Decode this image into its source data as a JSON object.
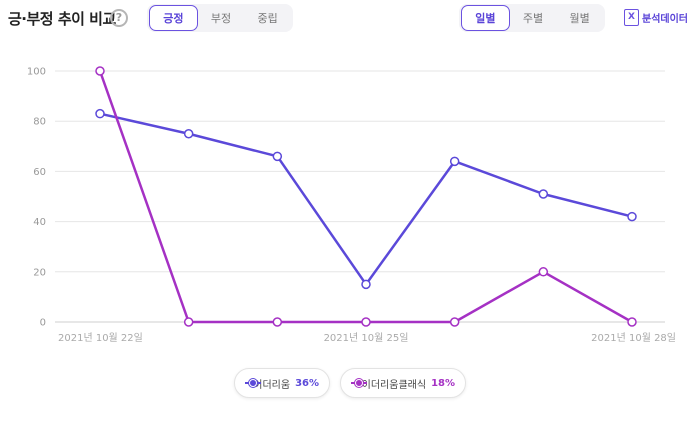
{
  "header": {
    "title": "긍·부정 추이 비교",
    "help_glyph": "?",
    "sentiment_tabs": [
      {
        "label": "긍정",
        "active": true
      },
      {
        "label": "부정",
        "active": false
      },
      {
        "label": "중립",
        "active": false
      }
    ],
    "period_tabs": [
      {
        "label": "일별",
        "active": true
      },
      {
        "label": "주별",
        "active": false
      },
      {
        "label": "월별",
        "active": false
      }
    ],
    "export_label": "분석데이터",
    "export_glyph": "X"
  },
  "colors": {
    "series1": "#5b49d9",
    "series2": "#a531c4",
    "accent": "#6b52e0",
    "grid": "#e6e6e6"
  },
  "chart_data": {
    "type": "line",
    "x": [
      "2021-10-22",
      "2021-10-23",
      "2021-10-24",
      "2021-10-25",
      "2021-10-26",
      "2021-10-27",
      "2021-10-28"
    ],
    "xtick_labels": [
      "2021년 10월 22일",
      "2021년 10월 25일",
      "2021년 10월 28일"
    ],
    "xtick_index": [
      0,
      3,
      6
    ],
    "yticks": [
      0,
      20,
      40,
      60,
      80,
      100
    ],
    "ylim": [
      0,
      100
    ],
    "grid": true,
    "legend_position": "bottom",
    "series": [
      {
        "name": "이더리움",
        "share": "36%",
        "values": [
          83,
          75,
          66,
          15,
          64,
          51,
          42
        ]
      },
      {
        "name": "이더리움클래식",
        "share": "18%",
        "values": [
          100,
          0,
          0,
          0,
          0,
          20,
          0
        ]
      }
    ]
  }
}
